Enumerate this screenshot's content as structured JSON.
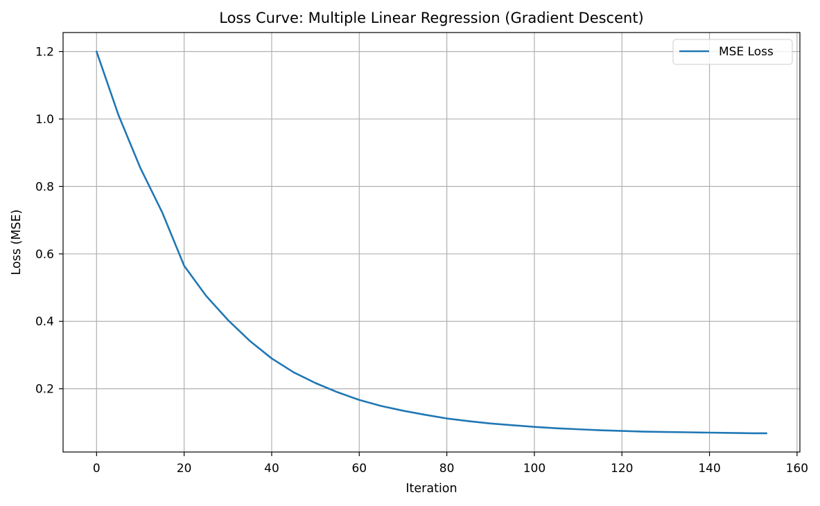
{
  "chart_data": {
    "type": "line",
    "title": "Loss Curve: Multiple Linear Regression (Gradient Descent)",
    "xlabel": "Iteration",
    "ylabel": "Loss (MSE)",
    "xlim": [
      -7.65,
      160.65
    ],
    "ylim": [
      0.0125,
      1.2565
    ],
    "xticks": [
      0,
      20,
      40,
      60,
      80,
      100,
      120,
      140,
      160
    ],
    "xtick_labels": [
      "0",
      "20",
      "40",
      "60",
      "80",
      "100",
      "120",
      "140",
      "160"
    ],
    "yticks": [
      0.2,
      0.4,
      0.6,
      0.8,
      1.0,
      1.2
    ],
    "ytick_labels": [
      "0.2",
      "0.4",
      "0.6",
      "0.8",
      "1.0",
      "1.2"
    ],
    "grid": true,
    "legend_position": "upper right",
    "series": [
      {
        "name": "MSE Loss",
        "color": "#1f77b4",
        "x": [
          0,
          5,
          10,
          15,
          20,
          25,
          30,
          35,
          40,
          45,
          50,
          55,
          60,
          65,
          70,
          75,
          80,
          85,
          90,
          95,
          100,
          105,
          110,
          115,
          120,
          125,
          130,
          135,
          140,
          145,
          150,
          153
        ],
        "y": [
          1.2,
          1.012,
          0.855,
          0.723,
          0.565,
          0.476,
          0.404,
          0.342,
          0.29,
          0.249,
          0.217,
          0.19,
          0.167,
          0.149,
          0.135,
          0.123,
          0.112,
          0.104,
          0.097,
          0.092,
          0.087,
          0.083,
          0.08,
          0.077,
          0.075,
          0.073,
          0.072,
          0.071,
          0.07,
          0.069,
          0.068,
          0.068
        ]
      }
    ]
  }
}
